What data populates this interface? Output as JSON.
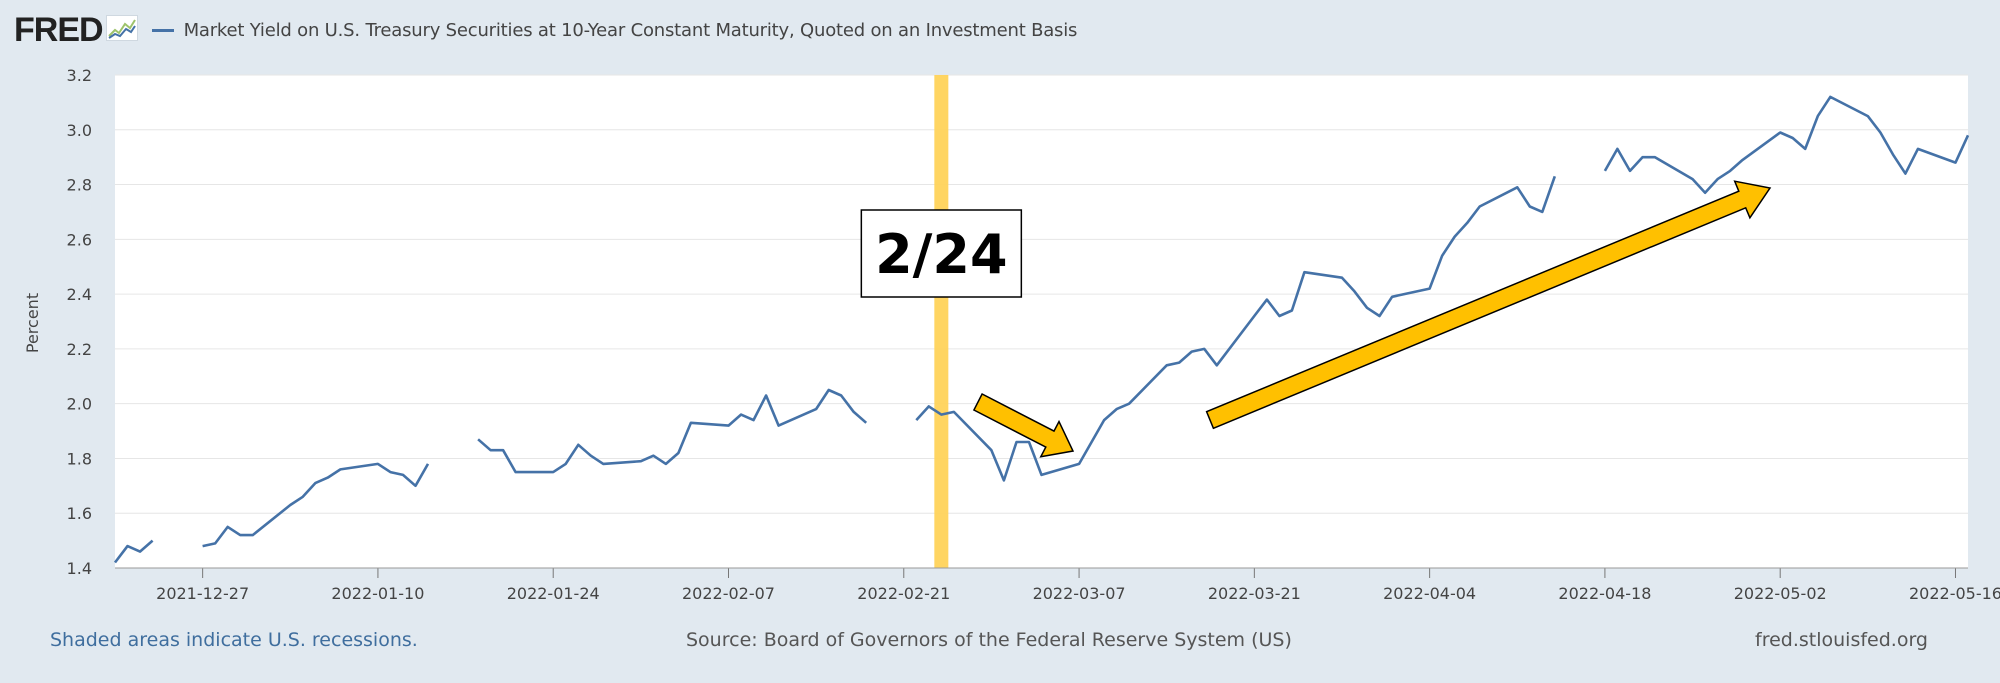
{
  "header": {
    "logo": "FRED",
    "title": "Market Yield on U.S. Treasury Securities at 10-Year Constant Maturity, Quoted on an Investment Basis"
  },
  "footer": {
    "recession_note": "Shaded areas indicate U.S. recessions.",
    "source": "Source: Board of Governors of the Federal Reserve System (US)",
    "site": "fred.stlouisfed.org"
  },
  "annotation": {
    "label": "2/24",
    "highlight_date": "2022-02-24",
    "highlight_color": "#ffd35a",
    "arrow_color": "#ffc000"
  },
  "colors": {
    "series": "#4572a7",
    "background": "#e1e9f0",
    "plot": "#ffffff"
  },
  "chart_data": {
    "type": "line",
    "ylabel": "Percent",
    "ylim": [
      1.4,
      3.2
    ],
    "yticks": [
      1.4,
      1.6,
      1.8,
      2.0,
      2.2,
      2.4,
      2.6,
      2.8,
      3.0,
      3.2
    ],
    "ytick_labels": [
      "1.4",
      "1.6",
      "1.8",
      "2.0",
      "2.2",
      "2.4",
      "2.6",
      "2.8",
      "3.0",
      "3.2"
    ],
    "xlim": [
      "2021-12-20",
      "2022-05-17"
    ],
    "xticks": [
      "2021-12-27",
      "2022-01-10",
      "2022-01-24",
      "2022-02-07",
      "2022-02-21",
      "2022-03-07",
      "2022-03-21",
      "2022-04-04",
      "2022-04-18",
      "2022-05-02",
      "2022-05-16"
    ],
    "grid": true,
    "series": [
      {
        "points": [
          [
            "2021-12-20",
            1.42
          ],
          [
            "2021-12-21",
            1.48
          ],
          [
            "2021-12-22",
            1.46
          ],
          [
            "2021-12-23",
            1.5
          ],
          [
            "2021-12-24",
            null
          ],
          [
            "2021-12-27",
            1.48
          ],
          [
            "2021-12-28",
            1.49
          ],
          [
            "2021-12-29",
            1.55
          ],
          [
            "2021-12-30",
            1.52
          ],
          [
            "2021-12-31",
            1.52
          ],
          [
            "2022-01-03",
            1.63
          ],
          [
            "2022-01-04",
            1.66
          ],
          [
            "2022-01-05",
            1.71
          ],
          [
            "2022-01-06",
            1.73
          ],
          [
            "2022-01-07",
            1.76
          ],
          [
            "2022-01-10",
            1.78
          ],
          [
            "2022-01-11",
            1.75
          ],
          [
            "2022-01-12",
            1.74
          ],
          [
            "2022-01-13",
            1.7
          ],
          [
            "2022-01-14",
            1.78
          ],
          [
            "2022-01-17",
            null
          ],
          [
            "2022-01-18",
            1.87
          ],
          [
            "2022-01-19",
            1.83
          ],
          [
            "2022-01-20",
            1.83
          ],
          [
            "2022-01-21",
            1.75
          ],
          [
            "2022-01-24",
            1.75
          ],
          [
            "2022-01-25",
            1.78
          ],
          [
            "2022-01-26",
            1.85
          ],
          [
            "2022-01-27",
            1.81
          ],
          [
            "2022-01-28",
            1.78
          ],
          [
            "2022-01-31",
            1.79
          ],
          [
            "2022-02-01",
            1.81
          ],
          [
            "2022-02-02",
            1.78
          ],
          [
            "2022-02-03",
            1.82
          ],
          [
            "2022-02-04",
            1.93
          ],
          [
            "2022-02-07",
            1.92
          ],
          [
            "2022-02-08",
            1.96
          ],
          [
            "2022-02-09",
            1.94
          ],
          [
            "2022-02-10",
            2.03
          ],
          [
            "2022-02-11",
            1.92
          ],
          [
            "2022-02-14",
            1.98
          ],
          [
            "2022-02-15",
            2.05
          ],
          [
            "2022-02-16",
            2.03
          ],
          [
            "2022-02-17",
            1.97
          ],
          [
            "2022-02-18",
            1.93
          ],
          [
            "2022-02-21",
            null
          ],
          [
            "2022-02-22",
            1.94
          ],
          [
            "2022-02-23",
            1.99
          ],
          [
            "2022-02-24",
            1.96
          ],
          [
            "2022-02-25",
            1.97
          ],
          [
            "2022-02-28",
            1.83
          ],
          [
            "2022-03-01",
            1.72
          ],
          [
            "2022-03-02",
            1.86
          ],
          [
            "2022-03-03",
            1.86
          ],
          [
            "2022-03-04",
            1.74
          ],
          [
            "2022-03-07",
            1.78
          ],
          [
            "2022-03-08",
            1.86
          ],
          [
            "2022-03-09",
            1.94
          ],
          [
            "2022-03-10",
            1.98
          ],
          [
            "2022-03-11",
            2.0
          ],
          [
            "2022-03-14",
            2.14
          ],
          [
            "2022-03-15",
            2.15
          ],
          [
            "2022-03-16",
            2.19
          ],
          [
            "2022-03-17",
            2.2
          ],
          [
            "2022-03-18",
            2.14
          ],
          [
            "2022-03-21",
            2.32
          ],
          [
            "2022-03-22",
            2.38
          ],
          [
            "2022-03-23",
            2.32
          ],
          [
            "2022-03-24",
            2.34
          ],
          [
            "2022-03-25",
            2.48
          ],
          [
            "2022-03-28",
            2.46
          ],
          [
            "2022-03-29",
            2.41
          ],
          [
            "2022-03-30",
            2.35
          ],
          [
            "2022-03-31",
            2.32
          ],
          [
            "2022-04-01",
            2.39
          ],
          [
            "2022-04-04",
            2.42
          ],
          [
            "2022-04-05",
            2.54
          ],
          [
            "2022-04-06",
            2.61
          ],
          [
            "2022-04-07",
            2.66
          ],
          [
            "2022-04-08",
            2.72
          ],
          [
            "2022-04-11",
            2.79
          ],
          [
            "2022-04-12",
            2.72
          ],
          [
            "2022-04-13",
            2.7
          ],
          [
            "2022-04-14",
            2.83
          ],
          [
            "2022-04-15",
            null
          ],
          [
            "2022-04-18",
            2.85
          ],
          [
            "2022-04-19",
            2.93
          ],
          [
            "2022-04-20",
            2.85
          ],
          [
            "2022-04-21",
            2.9
          ],
          [
            "2022-04-22",
            2.9
          ],
          [
            "2022-04-25",
            2.82
          ],
          [
            "2022-04-26",
            2.77
          ],
          [
            "2022-04-27",
            2.82
          ],
          [
            "2022-04-28",
            2.85
          ],
          [
            "2022-04-29",
            2.89
          ],
          [
            "2022-05-02",
            2.99
          ],
          [
            "2022-05-03",
            2.97
          ],
          [
            "2022-05-04",
            2.93
          ],
          [
            "2022-05-05",
            3.05
          ],
          [
            "2022-05-06",
            3.12
          ],
          [
            "2022-05-09",
            3.05
          ],
          [
            "2022-05-10",
            2.99
          ],
          [
            "2022-05-11",
            2.91
          ],
          [
            "2022-05-12",
            2.84
          ],
          [
            "2022-05-13",
            2.93
          ],
          [
            "2022-05-16",
            2.88
          ],
          [
            "2022-05-17",
            2.98
          ]
        ]
      }
    ]
  }
}
